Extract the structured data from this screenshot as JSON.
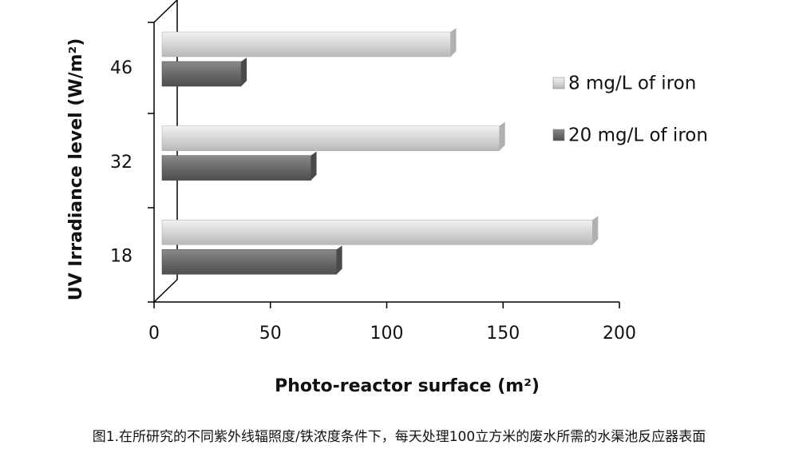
{
  "chart_data": {
    "type": "bar",
    "orientation": "horizontal",
    "categories": [
      "18",
      "32",
      "46"
    ],
    "series": [
      {
        "name": "8 mg/L of iron",
        "color": "#d4d4d4",
        "values": [
          185,
          145,
          124
        ]
      },
      {
        "name": "20 mg/L of iron",
        "color": "#6e6e6e",
        "values": [
          75,
          64,
          34
        ]
      }
    ],
    "xlim": [
      0,
      200
    ],
    "xticks": [
      0,
      50,
      100,
      150,
      200
    ],
    "xlabel": "Photo-reactor surface (m²)",
    "ylabel": "UV Irradiance level (W/m²)",
    "legend": "right"
  },
  "caption": "图1.在所研究的不同紫外线辐照度/铁浓度条件下，每天处理100立方米的废水所需的水渠池反应器表面"
}
